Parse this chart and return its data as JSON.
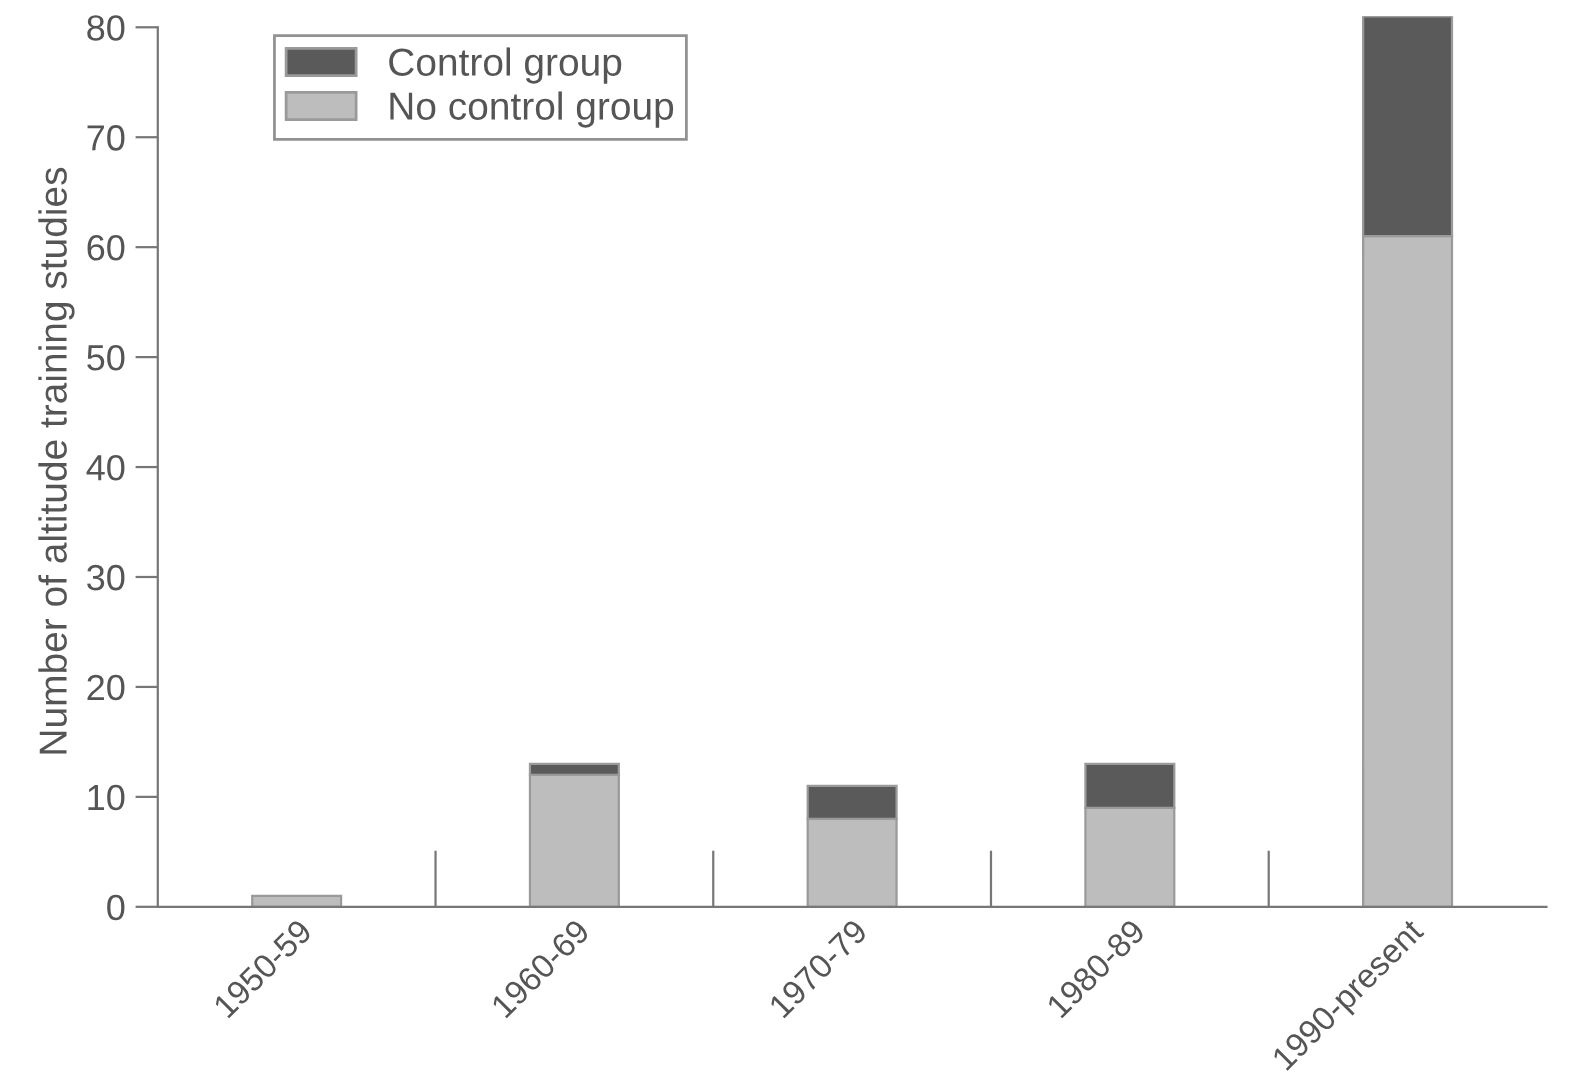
{
  "chart_data": {
    "type": "bar",
    "stacked": true,
    "ylabel": "Number of altitude training studies",
    "categories": [
      "1950-59",
      "1960-69",
      "1970-79",
      "1980-89",
      "1990-present"
    ],
    "series": [
      {
        "name": "No control group",
        "color": "#bdbdbd",
        "values": [
          1,
          12,
          8,
          9,
          61
        ]
      },
      {
        "name": "Control group",
        "color": "#5a5a5a",
        "values": [
          0,
          1,
          3,
          4,
          20
        ]
      }
    ],
    "ylim": [
      0,
      81
    ],
    "yticks": [
      0,
      10,
      20,
      30,
      40,
      50,
      60,
      70,
      80
    ],
    "grid": false,
    "legend": "top left"
  }
}
